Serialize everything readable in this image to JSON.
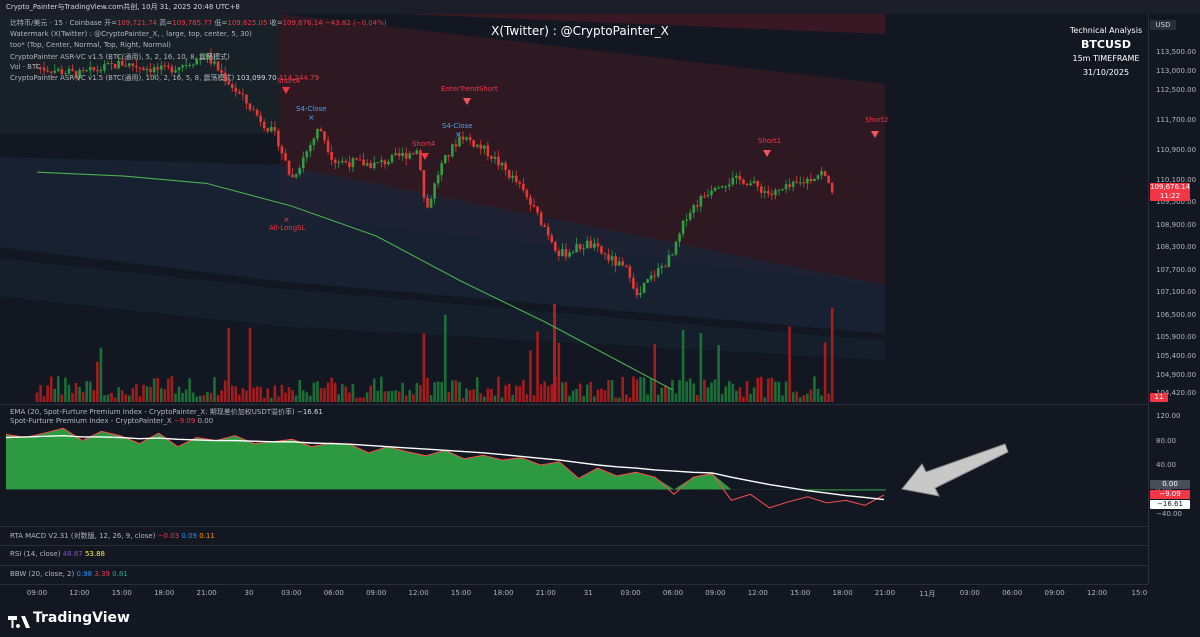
{
  "header": {
    "title": "Crypto_Painter与TradingView.com共创, 10月 31, 2025 20:48 UTC+8"
  },
  "legend": {
    "symbol": "比特币/美元 · 15 · Coinbase",
    "open_label": "开=",
    "open": "109,721.74",
    "high_label": "高=",
    "high": "109,765.77",
    "low_label": "低=",
    "low": "109,625.05",
    "close_label": "收=",
    "close": "109,676.14",
    "change": "−43.82 (−0.04%)",
    "lines": [
      "Watermark (X(Twitter) : @CryptoPainter_X, , large, top, center, 5, 30)",
      "too* (Top, Center, Normal, Top, Right, Normal)",
      "CryptoPainter ASR-VC v1.5 (BTC(通用), 5, 2, 16, 10, 8, 震荡模式)",
      "Vol · BTC"
    ],
    "asr_line": "CryptoPainter ASR-VC v1.5 (BTC(通用), 100, 2, 16, 5, 8, 震荡模式)",
    "asr_v1": "103,099.70",
    "asr_v2": "114,244.79"
  },
  "watermark": "X(Twitter) : @CryptoPainter_X",
  "info_box": {
    "line1": "Technical Analysis",
    "line2": "BTCUSD",
    "line3": "15m TIMEFRAME",
    "line4": "31/10/2025"
  },
  "price_axis": {
    "currency": "USD",
    "current_price": "109,676.14",
    "countdown": "11:22",
    "vol_tag": "11"
  },
  "signals": {
    "short4_a": "Short4",
    "s4_close_a": "S4-Close",
    "all_longsl": "All-LongSL",
    "short4_b": "Short4",
    "enter_trend_short": "EnterTrendShort",
    "s4_close_b": "S4-Close",
    "short1": "Short1",
    "short2": "Short2"
  },
  "pane2": {
    "legend1_name": "EMA (20, Spot-Furture Premium Index - CryptoPainter_X: 期现差价加权USDT溢价率)",
    "legend1_value": "−16.61",
    "legend2_name": "Spot-Furture Premium Index - CryptoPainter_X",
    "legend2_value": "−9.09",
    "legend2_value2": "0.00",
    "tags": {
      "zero": "0.00",
      "premium": "−9.09",
      "ema": "−16.61"
    }
  },
  "pane3": {
    "name": "RTA MACD V2.31 (对数版, 12, 26, 9, close)",
    "v1": "−0.03",
    "v2": "0.09",
    "v3": "0.11"
  },
  "pane4": {
    "name": "RSI (14, close)",
    "v1": "48.87",
    "v2": "53.88"
  },
  "pane5": {
    "name": "BBW (20, close, 2)",
    "v1": "0.98",
    "v2": "3.39",
    "v3": "0.81"
  },
  "brand": "TradingView",
  "chart_data": [
    {
      "type": "candlestick",
      "title": "比特币/美元 · 15 · Coinbase",
      "y_ticks": [
        "113,500.00",
        "113,000.00",
        "112,500.00",
        "111,700.00",
        "110,900.00",
        "110,100.00",
        "109,500.00",
        "108,900.00",
        "108,300.00",
        "107,700.00",
        "107,100.00",
        "106,500.00",
        "105,900.00",
        "105,400.00",
        "104,900.00",
        "104,420.00"
      ],
      "x_ticks": [
        "09:00",
        "12:00",
        "15:00",
        "18:00",
        "21:00",
        "30",
        "03:00",
        "06:00",
        "09:00",
        "12:00",
        "15:00",
        "18:00",
        "21:00",
        "31",
        "03:00",
        "06:00",
        "09:00",
        "12:00",
        "15:00",
        "18:00",
        "21:00",
        "11月",
        "03:00",
        "06:00",
        "09:00",
        "12:00",
        "15:0"
      ],
      "close_path": [
        [
          "30 09:00",
          113100
        ],
        [
          "30 12:00",
          112900
        ],
        [
          "30 15:00",
          113200
        ],
        [
          "30 18:00",
          113000
        ],
        [
          "30 21:00",
          113400
        ],
        [
          "30 23:00",
          112500
        ],
        [
          "31 02:00",
          111200
        ],
        [
          "31 03:00",
          110100
        ],
        [
          "31 05:00",
          111500
        ],
        [
          "31 06:00",
          110600
        ],
        [
          "31 09:00",
          110500
        ],
        [
          "31 12:00",
          110900
        ],
        [
          "31 12:30",
          109200
        ],
        [
          "31 13:30",
          110400
        ],
        [
          "31 15:00",
          111300
        ],
        [
          "31 17:00",
          110800
        ],
        [
          "31 19:00",
          110000
        ],
        [
          "31 21:00",
          108800
        ],
        [
          "31 22:00",
          108100
        ],
        [
          "31 24:00",
          108400
        ],
        [
          "31 27:00",
          107600
        ],
        [
          "31 27:30",
          106900
        ],
        [
          "31 28:00",
          107300
        ],
        [
          "31 30:00",
          108100
        ],
        [
          "31 31:00",
          109200
        ],
        [
          "31 33:00",
          110000
        ],
        [
          "31 35:00",
          110100
        ],
        [
          "31 37:00",
          109700
        ],
        [
          "31 39:00",
          110000
        ],
        [
          "31 40:30",
          110300
        ],
        [
          "31 41:30",
          109700
        ]
      ],
      "ema_long_path": [
        [
          "30 09:00",
          110300
        ],
        [
          "30 15:00",
          110200
        ],
        [
          "30 21:00",
          110000
        ],
        [
          "31 03:00",
          109400
        ],
        [
          "31 09:00",
          108600
        ],
        [
          "31 15:00",
          107400
        ],
        [
          "31 21:00",
          106300
        ],
        [
          "31 27:00",
          105100
        ],
        [
          "31 30:00",
          104500
        ]
      ],
      "band_upper": 114244.79,
      "band_lower": 103099.7,
      "current_price": 109676.14,
      "volume_series": "Vol · BTC"
    },
    {
      "type": "area",
      "title": "Spot-Furture Premium Index - CryptoPainter_X",
      "y_ticks": [
        "120.00",
        "80.00",
        "40.00",
        "0.00",
        "−40.00"
      ],
      "ylim": [
        -50,
        130
      ],
      "series": [
        {
          "name": "Spot-Furture Premium Index - CryptoPainter_X",
          "values": [
            90,
            85,
            92,
            100,
            80,
            95,
            88,
            75,
            92,
            70,
            85,
            80,
            88,
            75,
            78,
            82,
            70,
            76,
            74,
            60,
            70,
            62,
            55,
            64,
            50,
            56,
            48,
            52,
            40,
            45,
            18,
            35,
            22,
            28,
            20,
            -8,
            20,
            26,
            -18,
            -8,
            -30,
            -20,
            -12,
            -22,
            -18,
            -26,
            -9
          ]
        },
        {
          "name": "EMA (20, Spot-Furture Premium Index - CryptoPainter_X: 期现差价加权USDT溢价率)",
          "values": [
            85,
            86,
            87,
            88,
            86,
            86,
            85,
            83,
            84,
            82,
            81,
            80,
            80,
            79,
            78,
            78,
            76,
            75,
            74,
            72,
            70,
            68,
            66,
            64,
            62,
            60,
            57,
            54,
            51,
            48,
            44,
            40,
            37,
            35,
            32,
            30,
            28,
            27,
            20,
            14,
            8,
            3,
            -2,
            -6,
            -10,
            -13,
            -16.61
          ]
        }
      ]
    }
  ]
}
